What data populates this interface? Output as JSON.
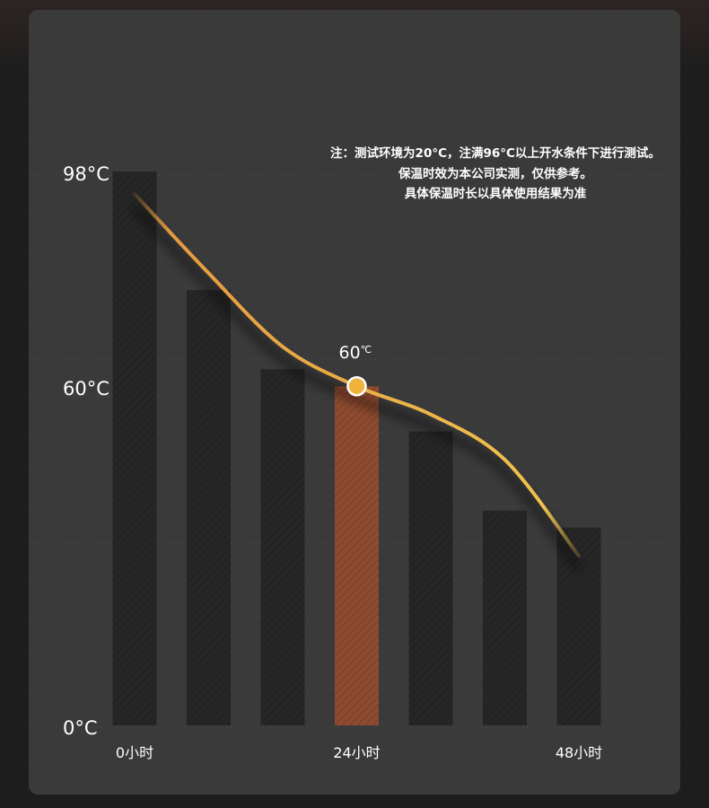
{
  "chart_data": {
    "type": "bar",
    "bars": [
      98,
      77,
      63,
      60,
      52,
      38,
      35
    ],
    "highlight_index": 3,
    "curve": {
      "x": [
        0,
        8,
        16,
        24,
        32,
        40,
        48
      ],
      "y": [
        94,
        80,
        67,
        60,
        55,
        47,
        30
      ]
    },
    "marker": {
      "x": 24,
      "y": 60,
      "label": "60",
      "unit": "℃"
    },
    "y_ticks": [
      {
        "value": 98,
        "label": "98°C"
      },
      {
        "value": 60,
        "label": "60°C"
      },
      {
        "value": 0,
        "label": "0°C"
      }
    ],
    "x_ticks": [
      {
        "index": 0,
        "label": "0小时"
      },
      {
        "index": 3,
        "label": "24小时"
      },
      {
        "index": 6,
        "label": "48小时"
      }
    ],
    "ylim": [
      0,
      98
    ],
    "grid": true
  },
  "note": {
    "lines": [
      "注：测试环境为20°C，注满96°C以上开水条件下进行测试。",
      "保温时效为本公司实测，仅供参考。",
      "具体保温时长以具体使用结果为准"
    ]
  },
  "colors": {
    "panel": "#3a3a3a",
    "bar": "#262626",
    "highlight_bar": "#8e4b30",
    "curve_start": "#e69a3e",
    "curve_end": "#f0c24e",
    "marker": "#f0b43c"
  }
}
